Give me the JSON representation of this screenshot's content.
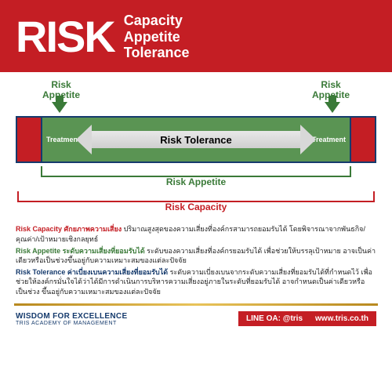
{
  "colors": {
    "red": "#c41e24",
    "green_dark": "#3a7a38",
    "green_fill": "#5a9453",
    "navy": "#163b6d",
    "arrow_gray": "#d8d8d8",
    "gold": "#c9a03a"
  },
  "header": {
    "main": "RISK",
    "sub1": "Capacity",
    "sub2": "Appetite",
    "sub3": "Tolerance"
  },
  "diagram": {
    "top_label_left": "Risk\nAppetite",
    "top_label_right": "Risk\nAppetite",
    "treatment_left": "Treatment",
    "treatment_right": "Treatment",
    "tolerance": "Risk Tolerance",
    "bracket_inner": "Risk Appetite",
    "bracket_outer": "Risk Capacity"
  },
  "definitions": {
    "d1_term": "Risk Capacity ศักยภาพความเสี่ยง",
    "d1_text": " ปริมาณสูงสุดของความเสี่ยงที่องค์กรสามารถยอมรับได้ โดยพิจารณาจากพันธกิจ/คุณค่า/เป้าหมายเชิงกลยุทธ์",
    "d2_term": "Risk Appetite ระดับความเสี่ยงที่ยอมรับได้",
    "d2_text": " ระดับของความเสี่ยงที่องค์กรยอมรับได้ เพื่อช่วยให้บรรลุเป้าหมาย อาจเป็นค่าเดียวหรือเป็นช่วงขึ้นอยู่กับความเหมาะสมของแต่ละปัจจัย",
    "d3_term": "Risk Tolerance ค่าเบี่ยงเบนความเสี่ยงที่ยอมรับได้",
    "d3_text": " ระดับความเบี่ยงเบนจากระดับความเสี่ยงที่ยอมรับได้ที่กำหนดไว้ เพื่อช่วยให้องค์กรมั่นใจได้ว่าได้มีการดำเนินการบริหารความเสี่ยงอยู่ภายในระดับที่ยอมรับได้ อาจกำหนดเป็นค่าเดียวหรือเป็นช่วง ขึ้นอยู่กับความเหมาะสมของแต่ละปัจจัย"
  },
  "footer": {
    "wisdom": "WISDOM FOR EXCELLENCE",
    "tris": "TRIS ACADEMY OF MANAGEMENT",
    "line": "LINE OA: @tris",
    "web": "www.tris.co.th"
  }
}
